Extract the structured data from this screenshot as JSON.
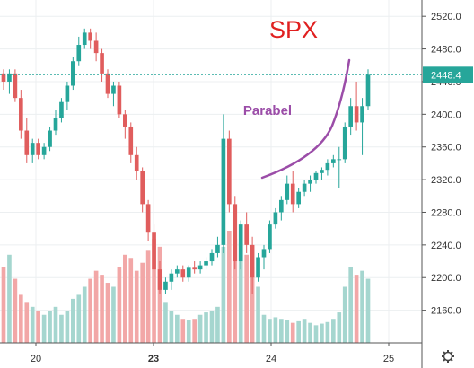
{
  "chart_data": {
    "type": "candlestick",
    "title": "SPX",
    "annotation": "Parabel",
    "last_price": "2448.4",
    "last_value": 2448.4,
    "ylim": [
      2120,
      2540
    ],
    "y_ticks": [
      "2520.0",
      "2480.0",
      "2440.0",
      "2400.0",
      "2360.0",
      "2320.0",
      "2280.0",
      "2240.0",
      "2200.0",
      "2160.0"
    ],
    "y_tick_values": [
      2520,
      2480,
      2440,
      2400,
      2360,
      2320,
      2280,
      2240,
      2200,
      2160
    ],
    "x_ticks": [
      "20",
      "23",
      "24",
      "25"
    ],
    "x_tick_bold": [
      false,
      true,
      false,
      false
    ],
    "colors": {
      "up": "#26a69a",
      "down": "#e05d5d",
      "vol_up": "#a5d6cf",
      "vol_down": "#f2a7a7",
      "title": "#e02020",
      "annotation": "#9b4da8",
      "price_line": "#26a69a"
    },
    "candles": [
      [
        2450,
        2455,
        2430,
        2440
      ],
      [
        2440,
        2455,
        2425,
        2450
      ],
      [
        2450,
        2455,
        2415,
        2420
      ],
      [
        2420,
        2430,
        2370,
        2380
      ],
      [
        2380,
        2395,
        2340,
        2350
      ],
      [
        2350,
        2370,
        2340,
        2365
      ],
      [
        2365,
        2370,
        2345,
        2350
      ],
      [
        2350,
        2365,
        2345,
        2360
      ],
      [
        2360,
        2385,
        2355,
        2380
      ],
      [
        2380,
        2405,
        2375,
        2395
      ],
      [
        2395,
        2420,
        2390,
        2415
      ],
      [
        2415,
        2440,
        2405,
        2435
      ],
      [
        2435,
        2470,
        2430,
        2465
      ],
      [
        2465,
        2495,
        2460,
        2485
      ],
      [
        2485,
        2505,
        2480,
        2500
      ],
      [
        2500,
        2505,
        2480,
        2490
      ],
      [
        2490,
        2500,
        2465,
        2475
      ],
      [
        2475,
        2480,
        2440,
        2450
      ],
      [
        2450,
        2455,
        2420,
        2425
      ],
      [
        2425,
        2440,
        2410,
        2435
      ],
      [
        2435,
        2440,
        2395,
        2400
      ],
      [
        2400,
        2405,
        2370,
        2385
      ],
      [
        2385,
        2390,
        2340,
        2350
      ],
      [
        2350,
        2360,
        2320,
        2330
      ],
      [
        2330,
        2335,
        2280,
        2290
      ],
      [
        2290,
        2295,
        2245,
        2255
      ],
      [
        2255,
        2265,
        2200,
        2210
      ],
      [
        2210,
        2220,
        2180,
        2185
      ],
      [
        2185,
        2200,
        2180,
        2195
      ],
      [
        2195,
        2210,
        2185,
        2205
      ],
      [
        2205,
        2215,
        2200,
        2210
      ],
      [
        2210,
        2215,
        2195,
        2200
      ],
      [
        2200,
        2215,
        2195,
        2212
      ],
      [
        2212,
        2220,
        2205,
        2210
      ],
      [
        2210,
        2220,
        2205,
        2215
      ],
      [
        2215,
        2225,
        2210,
        2220
      ],
      [
        2220,
        2235,
        2215,
        2230
      ],
      [
        2230,
        2250,
        2225,
        2240
      ],
      [
        2240,
        2400,
        2230,
        2370
      ],
      [
        2370,
        2380,
        2280,
        2290
      ],
      [
        2290,
        2300,
        2210,
        2220
      ],
      [
        2220,
        2270,
        2210,
        2265
      ],
      [
        2265,
        2280,
        2230,
        2240
      ],
      [
        2240,
        2250,
        2180,
        2200
      ],
      [
        2200,
        2230,
        2195,
        2225
      ],
      [
        2225,
        2240,
        2210,
        2235
      ],
      [
        2235,
        2270,
        2230,
        2265
      ],
      [
        2265,
        2285,
        2260,
        2280
      ],
      [
        2280,
        2300,
        2270,
        2295
      ],
      [
        2295,
        2325,
        2290,
        2315
      ],
      [
        2315,
        2330,
        2280,
        2290
      ],
      [
        2290,
        2310,
        2285,
        2305
      ],
      [
        2305,
        2320,
        2300,
        2315
      ],
      [
        2315,
        2325,
        2305,
        2320
      ],
      [
        2320,
        2330,
        2315,
        2328
      ],
      [
        2328,
        2335,
        2320,
        2332
      ],
      [
        2332,
        2345,
        2325,
        2340
      ],
      [
        2340,
        2350,
        2335,
        2345
      ],
      [
        2345,
        2360,
        2310,
        2345
      ],
      [
        2345,
        2390,
        2340,
        2385
      ],
      [
        2385,
        2420,
        2375,
        2410
      ],
      [
        2410,
        2440,
        2380,
        2390
      ],
      [
        2390,
        2420,
        2350,
        2410
      ],
      [
        2410,
        2455,
        2405,
        2448.4
      ]
    ],
    "volumes": [
      95,
      110,
      80,
      60,
      50,
      45,
      40,
      35,
      40,
      45,
      35,
      40,
      55,
      60,
      70,
      80,
      90,
      85,
      75,
      70,
      95,
      110,
      105,
      90,
      100,
      115,
      130,
      120,
      50,
      40,
      35,
      30,
      28,
      30,
      35,
      38,
      40,
      45,
      120,
      140,
      130,
      125,
      110,
      95,
      70,
      35,
      30,
      32,
      30,
      28,
      25,
      27,
      30,
      25,
      22,
      24,
      26,
      30,
      38,
      70,
      95,
      85,
      90,
      80
    ]
  }
}
